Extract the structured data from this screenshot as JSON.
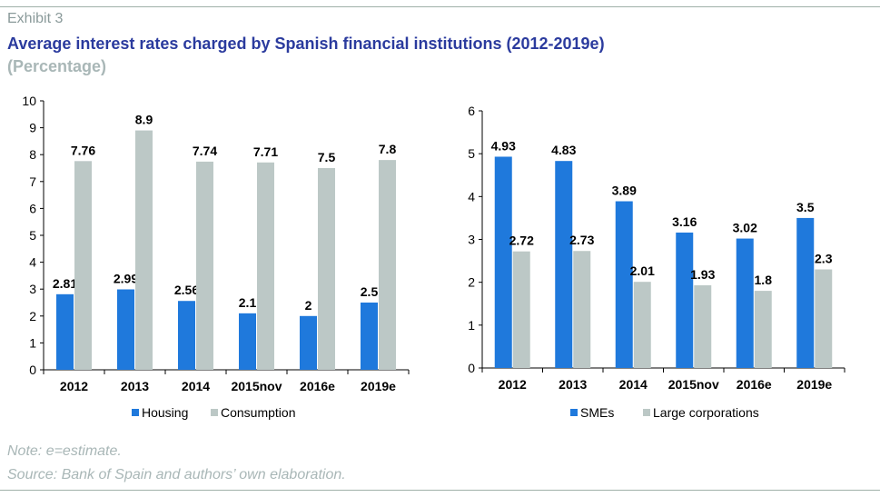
{
  "header": {
    "exhibit": "Exhibit 3",
    "title": "Average interest rates charged by Spanish financial institutions (2012-2019e)",
    "subtitle": "(Percentage)"
  },
  "notes": {
    "note": "Note: e=estimate.",
    "source": "Source: Bank of Spain and authors’ own elaboration."
  },
  "colors": {
    "blue": "#1f79dc",
    "grey": "#bcc8c6",
    "title": "#2b3b9e",
    "rule": "#9fb0a8"
  },
  "chart_data": [
    {
      "type": "bar",
      "categories": [
        "2012",
        "2013",
        "2014",
        "2015nov",
        "2016e",
        "2019e"
      ],
      "series": [
        {
          "name": "Housing",
          "values": [
            2.81,
            2.99,
            2.56,
            2.1,
            2,
            2.5
          ],
          "labels": [
            "2.81",
            "2.99",
            "2.56",
            "2.1",
            "2",
            "2.5"
          ],
          "color": "#1f79dc"
        },
        {
          "name": "Consumption",
          "values": [
            7.76,
            8.9,
            7.74,
            7.71,
            7.5,
            7.8
          ],
          "labels": [
            "7.76",
            "8.9",
            "7.74",
            "7.71",
            "7.5",
            "7.8"
          ],
          "color": "#bcc8c6"
        }
      ],
      "ylim": [
        0,
        10
      ],
      "yticks": [
        "0",
        "1",
        "2",
        "3",
        "4",
        "5",
        "6",
        "7",
        "8",
        "9",
        "10"
      ],
      "grid": false,
      "legend": "bottom"
    },
    {
      "type": "bar",
      "categories": [
        "2012",
        "2013",
        "2014",
        "2015nov",
        "2016e",
        "2019e"
      ],
      "series": [
        {
          "name": "SMEs",
          "values": [
            4.93,
            4.83,
            3.89,
            3.16,
            3.02,
            3.5
          ],
          "labels": [
            "4.93",
            "4.83",
            "3.89",
            "3.16",
            "3.02",
            "3.5"
          ],
          "color": "#1f79dc"
        },
        {
          "name": "Large corporations",
          "values": [
            2.72,
            2.73,
            2.01,
            1.93,
            1.8,
            2.3
          ],
          "labels": [
            "2.72",
            "2.73",
            "2.01",
            "1.93",
            "1.8",
            "2.3"
          ],
          "color": "#bcc8c6"
        }
      ],
      "ylim": [
        0,
        6
      ],
      "yticks": [
        "0",
        "1",
        "2",
        "3",
        "4",
        "5",
        "6"
      ],
      "grid": false,
      "legend": "bottom"
    }
  ]
}
